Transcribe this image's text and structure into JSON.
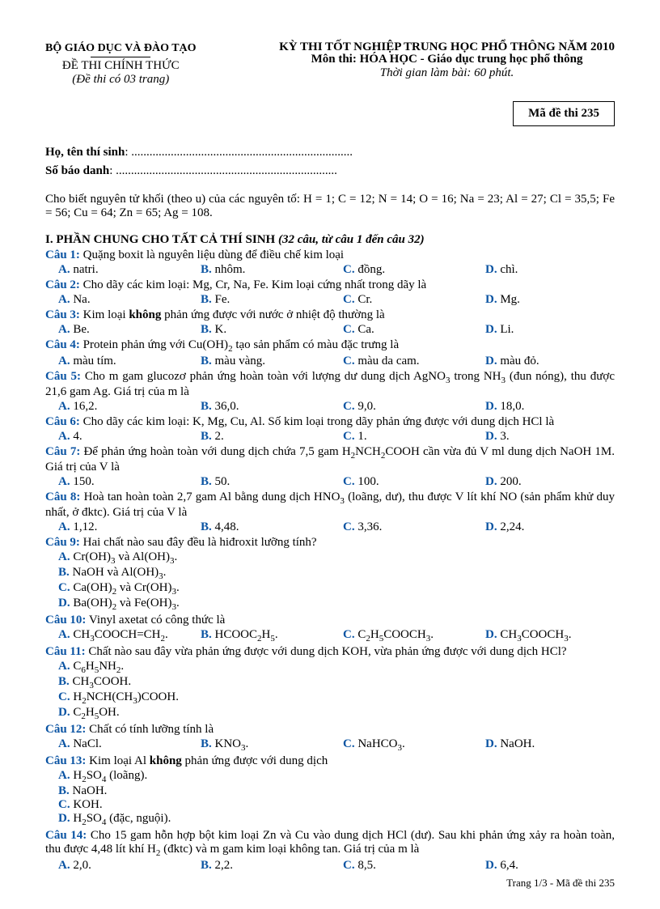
{
  "header": {
    "ministry": "BỘ GIÁO DỤC VÀ ĐÀO TẠO",
    "examTitle": "KỲ THI TỐT NGHIỆP TRUNG HỌC PHỔ THÔNG NĂM 2010",
    "subject": "Môn thi: HÓA HỌC - Giáo dục trung học phổ thông",
    "duration": "Thời gian làm bài: 60 phút.",
    "decree": "ĐỀ THI CHÍNH THỨC",
    "pages": "(Đề thi có 03 trang)",
    "codeLabel": "Mã đề thi 235"
  },
  "fields": {
    "name": "Họ, tên thí sinh",
    "num": "Số báo danh",
    "dots": ": ........................................................................."
  },
  "given": "Cho biết nguyên tử khối (theo u) của các nguyên tố: H = 1; C = 12; N = 14; O = 16; Na = 23; Al = 27; Cl = 35,5; Fe = 56; Cu = 64; Zn = 65; Ag = 108.",
  "section": {
    "title": "I. PHẦN CHUNG CHO TẤT CẢ THÍ SINH",
    "note": "(32 câu, từ câu 1 đến câu 32)"
  },
  "qs": [
    {
      "n": "Câu 1:",
      "t": " Quặng boxit là nguyên liệu dùng để điều chế kim loại",
      "o": [
        [
          "A.",
          "natri."
        ],
        [
          "B.",
          "nhôm."
        ],
        [
          "C.",
          "đồng."
        ],
        [
          "D.",
          "chì."
        ]
      ]
    },
    {
      "n": "Câu 2:",
      "t": " Cho dãy các kim loại: Mg, Cr, Na, Fe. Kim loại cứng nhất trong dãy là",
      "o": [
        [
          "A.",
          "Na."
        ],
        [
          "B.",
          "Fe."
        ],
        [
          "C.",
          "Cr."
        ],
        [
          "D.",
          "Mg."
        ]
      ]
    },
    {
      "n": "Câu 3:",
      "thtml": " Kim loại <b>không</b> phản ứng được với nước ở nhiệt độ thường là",
      "o": [
        [
          "A.",
          "Be."
        ],
        [
          "B.",
          "K."
        ],
        [
          "C.",
          "Ca."
        ],
        [
          "D.",
          "Li."
        ]
      ]
    },
    {
      "n": "Câu 4:",
      "thtml": " Protein phản ứng với Cu(OH)<sub>2</sub> tạo sản phẩm có màu đặc trưng là",
      "o": [
        [
          "A.",
          "màu tím."
        ],
        [
          "B.",
          "màu vàng."
        ],
        [
          "C.",
          "màu da cam."
        ],
        [
          "D.",
          "màu đỏ."
        ]
      ]
    },
    {
      "n": "Câu 5:",
      "thtml": " Cho m gam glucozơ phản ứng hoàn toàn với lượng dư dung dịch AgNO<sub>3</sub> trong NH<sub>3</sub> (đun nóng), thu được 21,6 gam Ag. Giá trị của m là",
      "o": [
        [
          "A.",
          "16,2."
        ],
        [
          "B.",
          "36,0."
        ],
        [
          "C.",
          "9,0."
        ],
        [
          "D.",
          "18,0."
        ]
      ]
    },
    {
      "n": "Câu 6:",
      "t": " Cho dãy các kim loại: K, Mg, Cu, Al. Số kim loại trong dãy phản ứng được với dung dịch HCl là",
      "o": [
        [
          "A.",
          "4."
        ],
        [
          "B.",
          "2."
        ],
        [
          "C.",
          "1."
        ],
        [
          "D.",
          "3."
        ]
      ]
    },
    {
      "n": "Câu 7:",
      "thtml": " Để phản ứng hoàn toàn với dung dịch chứa 7,5 gam H<sub>2</sub>NCH<sub>2</sub>COOH cần vừa đủ V ml dung dịch NaOH 1M. Giá trị của V là",
      "o": [
        [
          "A.",
          "150."
        ],
        [
          "B.",
          "50."
        ],
        [
          "C.",
          "100."
        ],
        [
          "D.",
          "200."
        ]
      ]
    },
    {
      "n": "Câu 8:",
      "thtml": " Hoà tan hoàn toàn 2,7 gam Al bằng dung dịch HNO<sub>3</sub> (loãng, dư), thu được V lít khí NO (sản phẩm khử duy nhất, ở đktc). Giá trị của V là",
      "o": [
        [
          "A.",
          "1,12."
        ],
        [
          "B.",
          "4,48."
        ],
        [
          "C.",
          "3,36."
        ],
        [
          "D.",
          "2,24."
        ]
      ]
    },
    {
      "n": "Câu 9:",
      "t": " Hai chất nào sau đây đều là hiđroxit lưỡng tính?",
      "mode": "2col",
      "ohtml": [
        [
          "A.",
          "Cr(OH)<sub>3</sub> và Al(OH)<sub>3</sub>."
        ],
        [
          "B.",
          "NaOH và Al(OH)<sub>3</sub>."
        ],
        [
          "C.",
          "Ca(OH)<sub>2</sub> và Cr(OH)<sub>3</sub>."
        ],
        [
          "D.",
          "Ba(OH)<sub>2</sub> và Fe(OH)<sub>3</sub>."
        ]
      ]
    },
    {
      "n": "Câu 10:",
      "t": " Vinyl axetat có công thức là",
      "ohtml": [
        [
          "A.",
          "CH<sub>3</sub>COOCH=CH<sub>2</sub>."
        ],
        [
          "B.",
          "HCOOC<sub>2</sub>H<sub>5</sub>."
        ],
        [
          "C.",
          "C<sub>2</sub>H<sub>5</sub>COOCH<sub>3</sub>."
        ],
        [
          "D.",
          "CH<sub>3</sub>COOCH<sub>3</sub>."
        ]
      ]
    },
    {
      "n": "Câu 11:",
      "t": " Chất nào sau đây vừa phản ứng được với dung dịch KOH, vừa phản ứng được với dung dịch HCl?",
      "mode": "2col",
      "ohtml": [
        [
          "A.",
          "C<sub>6</sub>H<sub>5</sub>NH<sub>2</sub>."
        ],
        [
          "B.",
          "CH<sub>3</sub>COOH."
        ],
        [
          "C.",
          "H<sub>2</sub>NCH(CH<sub>3</sub>)COOH."
        ],
        [
          "D.",
          "C<sub>2</sub>H<sub>5</sub>OH."
        ]
      ]
    },
    {
      "n": "Câu 12:",
      "t": " Chất có tính lưỡng tính là",
      "ohtml": [
        [
          "A.",
          "NaCl."
        ],
        [
          "B.",
          "KNO<sub>3</sub>."
        ],
        [
          "C.",
          "NaHCO<sub>3</sub>."
        ],
        [
          "D.",
          "NaOH."
        ]
      ]
    },
    {
      "n": "Câu 13:",
      "thtml": " Kim loại Al <b>không</b> phản ứng được với dung dịch",
      "mode": "2col",
      "ohtml": [
        [
          "A.",
          "H<sub>2</sub>SO<sub>4</sub> (loãng)."
        ],
        [
          "B.",
          "NaOH."
        ],
        [
          "C.",
          "KOH."
        ],
        [
          "D.",
          "H<sub>2</sub>SO<sub>4</sub> (đặc, nguội)."
        ]
      ]
    },
    {
      "n": "Câu 14:",
      "thtml": " Cho 15 gam hỗn hợp bột kim loại Zn và Cu vào dung dịch HCl (dư). Sau khi phản ứng xảy ra hoàn toàn, thu được 4,48 lít khí H<sub>2</sub> (đktc) và m gam kim loại không tan. Giá trị của m là",
      "o": [
        [
          "A.",
          "2,0."
        ],
        [
          "B.",
          "2,2."
        ],
        [
          "C.",
          "8,5."
        ],
        [
          "D.",
          "6,4."
        ]
      ]
    }
  ],
  "footer": "Trang 1/3 - Mã đề thi 235"
}
